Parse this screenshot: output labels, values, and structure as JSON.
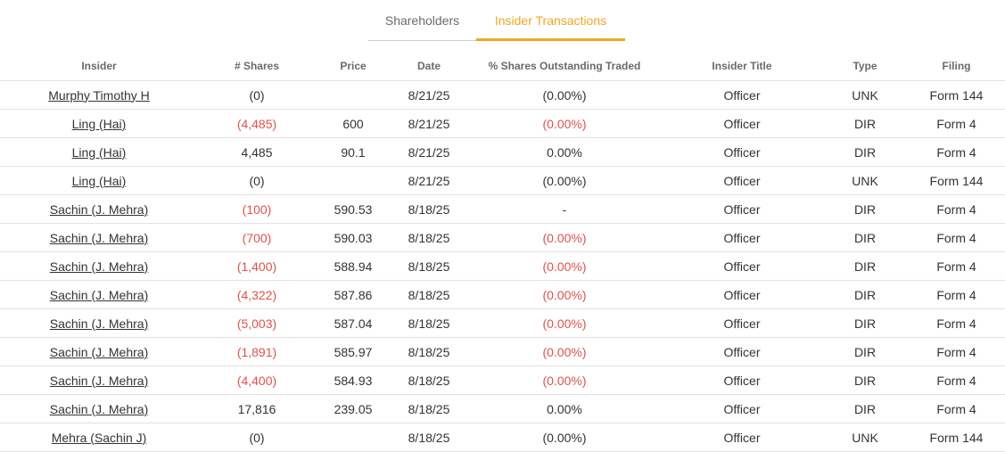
{
  "tabs": [
    {
      "label": "Shareholders",
      "active": false
    },
    {
      "label": "Insider Transactions",
      "active": true
    }
  ],
  "colors": {
    "accent": "#f0a623",
    "negative": "#e0524a",
    "text": "#333333"
  },
  "table": {
    "headers": [
      "Insider",
      "# Shares",
      "Price",
      "Date",
      "% Shares Outstanding Traded",
      "Insider Title",
      "Type",
      "Filing"
    ],
    "rows": [
      {
        "insider": "Murphy Timothy H",
        "shares": "(0)",
        "shares_neg": false,
        "price": "",
        "date": "8/21/25",
        "pct": "(0.00%)",
        "pct_neg": false,
        "title": "Officer",
        "type": "UNK",
        "filing": "Form 144"
      },
      {
        "insider": "Ling (Hai)",
        "shares": "(4,485)",
        "shares_neg": true,
        "price": "600",
        "date": "8/21/25",
        "pct": "(0.00%)",
        "pct_neg": true,
        "title": "Officer",
        "type": "DIR",
        "filing": "Form 4"
      },
      {
        "insider": "Ling (Hai)",
        "shares": "4,485",
        "shares_neg": false,
        "price": "90.1",
        "date": "8/21/25",
        "pct": "0.00%",
        "pct_neg": false,
        "title": "Officer",
        "type": "DIR",
        "filing": "Form 4"
      },
      {
        "insider": "Ling (Hai)",
        "shares": "(0)",
        "shares_neg": false,
        "price": "",
        "date": "8/21/25",
        "pct": "(0.00%)",
        "pct_neg": false,
        "title": "Officer",
        "type": "UNK",
        "filing": "Form 144"
      },
      {
        "insider": "Sachin (J. Mehra)",
        "shares": "(100)",
        "shares_neg": true,
        "price": "590.53",
        "date": "8/18/25",
        "pct": "-",
        "pct_neg": false,
        "title": "Officer",
        "type": "DIR",
        "filing": "Form 4"
      },
      {
        "insider": "Sachin (J. Mehra)",
        "shares": "(700)",
        "shares_neg": true,
        "price": "590.03",
        "date": "8/18/25",
        "pct": "(0.00%)",
        "pct_neg": true,
        "title": "Officer",
        "type": "DIR",
        "filing": "Form 4"
      },
      {
        "insider": "Sachin (J. Mehra)",
        "shares": "(1,400)",
        "shares_neg": true,
        "price": "588.94",
        "date": "8/18/25",
        "pct": "(0.00%)",
        "pct_neg": true,
        "title": "Officer",
        "type": "DIR",
        "filing": "Form 4"
      },
      {
        "insider": "Sachin (J. Mehra)",
        "shares": "(4,322)",
        "shares_neg": true,
        "price": "587.86",
        "date": "8/18/25",
        "pct": "(0.00%)",
        "pct_neg": true,
        "title": "Officer",
        "type": "DIR",
        "filing": "Form 4"
      },
      {
        "insider": "Sachin (J. Mehra)",
        "shares": "(5,003)",
        "shares_neg": true,
        "price": "587.04",
        "date": "8/18/25",
        "pct": "(0.00%)",
        "pct_neg": true,
        "title": "Officer",
        "type": "DIR",
        "filing": "Form 4"
      },
      {
        "insider": "Sachin (J. Mehra)",
        "shares": "(1,891)",
        "shares_neg": true,
        "price": "585.97",
        "date": "8/18/25",
        "pct": "(0.00%)",
        "pct_neg": true,
        "title": "Officer",
        "type": "DIR",
        "filing": "Form 4"
      },
      {
        "insider": "Sachin (J. Mehra)",
        "shares": "(4,400)",
        "shares_neg": true,
        "price": "584.93",
        "date": "8/18/25",
        "pct": "(0.00%)",
        "pct_neg": true,
        "title": "Officer",
        "type": "DIR",
        "filing": "Form 4"
      },
      {
        "insider": "Sachin (J. Mehra)",
        "shares": "17,816",
        "shares_neg": false,
        "price": "239.05",
        "date": "8/18/25",
        "pct": "0.00%",
        "pct_neg": false,
        "title": "Officer",
        "type": "DIR",
        "filing": "Form 4"
      },
      {
        "insider": "Mehra (Sachin J)",
        "shares": "(0)",
        "shares_neg": false,
        "price": "",
        "date": "8/18/25",
        "pct": "(0.00%)",
        "pct_neg": false,
        "title": "Officer",
        "type": "UNK",
        "filing": "Form 144"
      }
    ]
  }
}
